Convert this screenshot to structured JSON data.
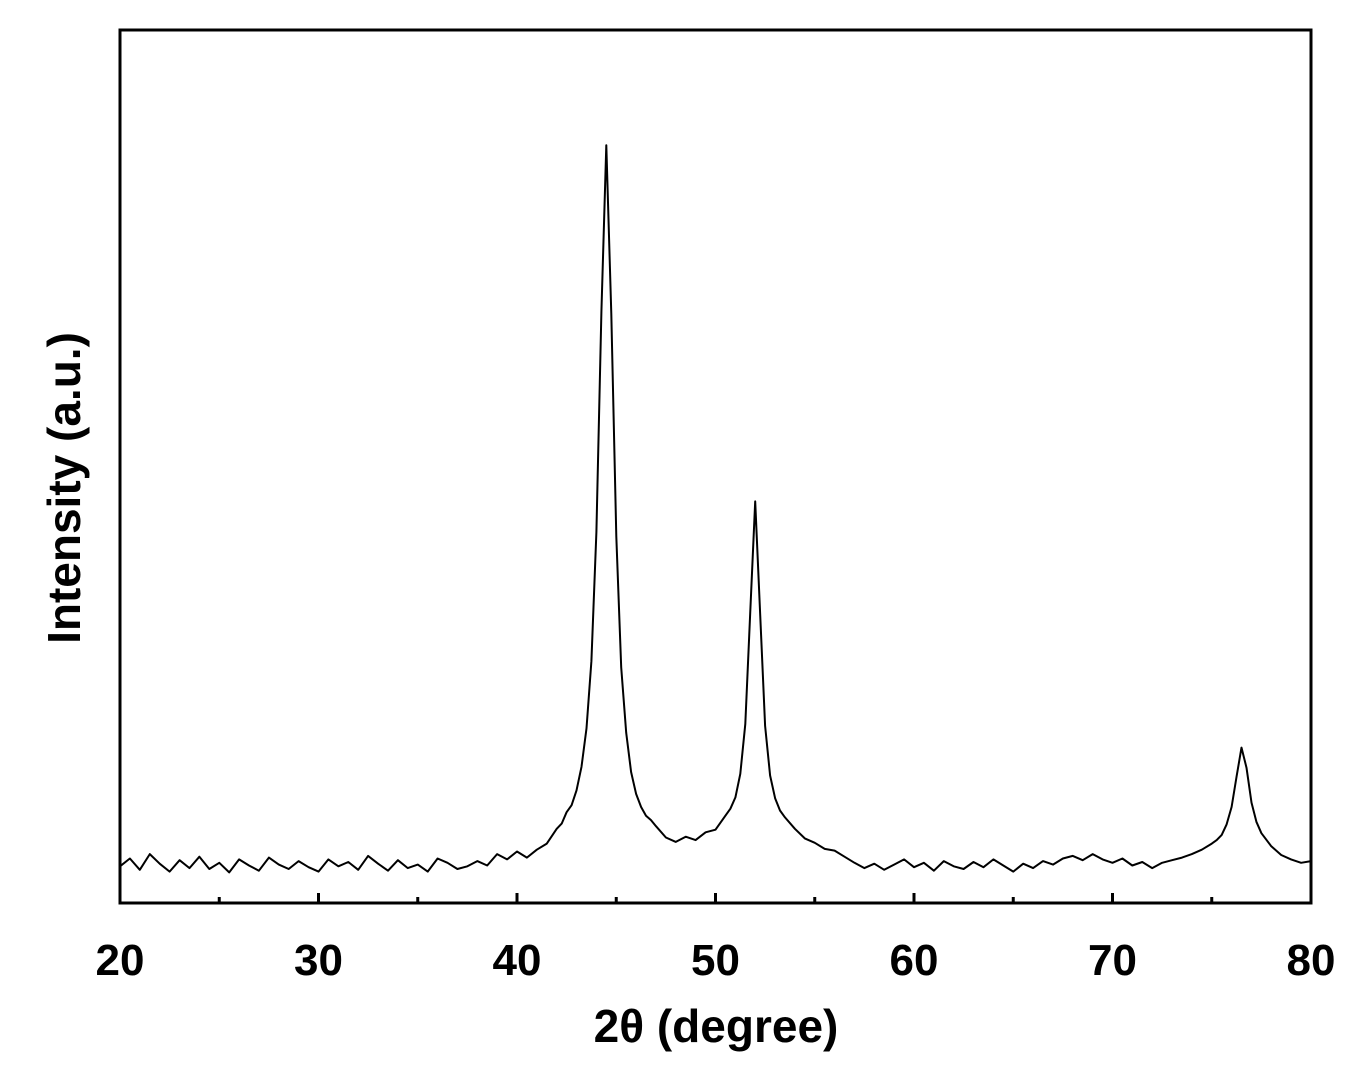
{
  "chart_data": {
    "type": "line",
    "x_label": "2θ (degree)",
    "y_label": "Intensity (a.u.)",
    "xlim": [
      20,
      80
    ],
    "xticks": [
      20,
      30,
      40,
      50,
      60,
      70,
      80
    ],
    "xminorticks": [
      25,
      35,
      45,
      55,
      65,
      75
    ],
    "ylim": [
      0,
      100
    ],
    "color": "#000000",
    "x": [
      20,
      20.5,
      21,
      21.5,
      22,
      22.5,
      23,
      23.5,
      24,
      24.5,
      25,
      25.5,
      26,
      26.5,
      27,
      27.5,
      28,
      28.5,
      29,
      29.5,
      30,
      30.5,
      31,
      31.5,
      32,
      32.5,
      33,
      33.5,
      34,
      34.5,
      35,
      35.5,
      36,
      36.5,
      37,
      37.5,
      38,
      38.5,
      39,
      39.5,
      40,
      40.5,
      41,
      41.5,
      42,
      42.25,
      42.5,
      42.75,
      43,
      43.25,
      43.5,
      43.75,
      44,
      44.25,
      44.5,
      44.75,
      45,
      45.25,
      45.5,
      45.75,
      46,
      46.25,
      46.5,
      46.75,
      47,
      47.5,
      48,
      48.5,
      49,
      49.5,
      50,
      50.5,
      50.75,
      51,
      51.25,
      51.5,
      51.75,
      52,
      52.25,
      52.5,
      52.75,
      53,
      53.25,
      53.5,
      54,
      54.5,
      55,
      55.5,
      56,
      56.5,
      57,
      57.5,
      58,
      58.5,
      59,
      59.5,
      60,
      60.5,
      61,
      61.5,
      62,
      62.5,
      63,
      63.5,
      64,
      64.5,
      65,
      65.5,
      66,
      66.5,
      67,
      67.5,
      68,
      68.5,
      69,
      69.5,
      70,
      70.5,
      71,
      71.5,
      72,
      72.5,
      73,
      73.5,
      74,
      74.5,
      75,
      75.25,
      75.5,
      75.75,
      76,
      76.25,
      76.5,
      76.75,
      77,
      77.25,
      77.5,
      78,
      78.5,
      79,
      79.5,
      80
    ],
    "values": [
      4.2,
      5.1,
      3.8,
      5.6,
      4.5,
      3.6,
      4.9,
      4.0,
      5.3,
      3.9,
      4.6,
      3.5,
      5.0,
      4.3,
      3.7,
      5.2,
      4.4,
      3.9,
      4.8,
      4.1,
      3.6,
      5.0,
      4.2,
      4.7,
      3.8,
      5.4,
      4.5,
      3.7,
      4.9,
      4.0,
      4.4,
      3.6,
      5.1,
      4.6,
      3.9,
      4.2,
      4.8,
      4.3,
      5.6,
      5.0,
      5.9,
      5.2,
      6.1,
      6.8,
      8.5,
      9.1,
      10.4,
      11.2,
      12.9,
      15.6,
      20,
      27.7,
      42.5,
      67.7,
      86.8,
      67.5,
      42,
      27,
      19.5,
      15,
      12.5,
      11,
      10,
      9.5,
      8.8,
      7.5,
      7.0,
      7.6,
      7.2,
      8.1,
      8.4,
      10,
      10.8,
      12.1,
      14.8,
      20.5,
      33.2,
      46,
      33,
      20.3,
      14.6,
      12,
      10.6,
      9.8,
      8.5,
      7.4,
      6.9,
      6.2,
      6.0,
      5.3,
      4.6,
      4.0,
      4.5,
      3.8,
      4.4,
      5.0,
      4.1,
      4.6,
      3.7,
      4.8,
      4.2,
      3.9,
      4.7,
      4.1,
      5.0,
      4.3,
      3.6,
      4.5,
      4.0,
      4.8,
      4.4,
      5.1,
      5.4,
      4.9,
      5.6,
      5.0,
      4.6,
      5.1,
      4.3,
      4.7,
      4.0,
      4.6,
      4.9,
      5.2,
      5.6,
      6.1,
      6.8,
      7.2,
      7.8,
      9,
      11,
      14.5,
      17.8,
      15.5,
      11.5,
      9.3,
      8,
      6.5,
      5.5,
      5.0,
      4.6,
      4.8
    ]
  }
}
